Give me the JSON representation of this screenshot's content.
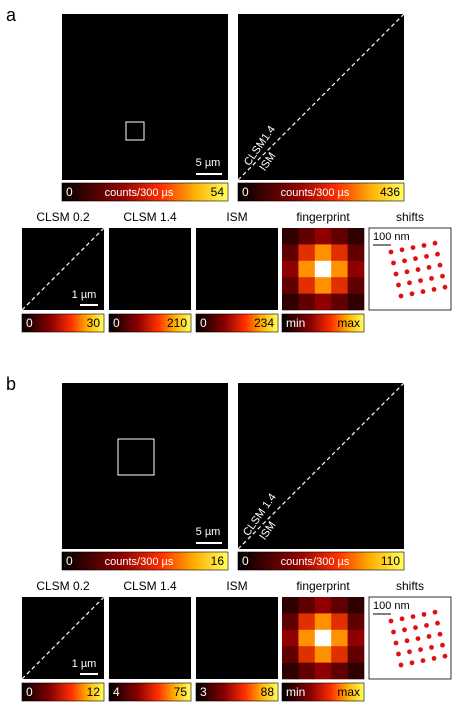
{
  "panels": [
    {
      "label": "a",
      "large": [
        {
          "scale_bar": "5 µm",
          "colorbar": {
            "min": "0",
            "unit": "counts/300 µs",
            "max": "54"
          }
        },
        {
          "diagonal_labels": [
            "CLSM1.4",
            "ISM"
          ],
          "colorbar": {
            "min": "0",
            "unit": "counts/300 µs",
            "max": "436"
          }
        }
      ],
      "small": [
        {
          "title": "CLSM 0.2",
          "scale_bar": "1 µm",
          "colorbar": {
            "min": "0",
            "max": "30"
          }
        },
        {
          "title": "CLSM 1.4",
          "colorbar": {
            "min": "0",
            "max": "210"
          }
        },
        {
          "title": "ISM",
          "colorbar": {
            "min": "0",
            "max": "234"
          }
        },
        {
          "title": "fingerprint",
          "colorbar": {
            "min": "min",
            "max": "max"
          }
        },
        {
          "title": "shifts",
          "scale_bar": "100 nm"
        }
      ]
    },
    {
      "label": "b",
      "large": [
        {
          "scale_bar": "5 µm",
          "colorbar": {
            "min": "0",
            "unit": "counts/300 µs",
            "max": "16"
          }
        },
        {
          "diagonal_labels": [
            "CLSM 1.4",
            "ISM"
          ],
          "colorbar": {
            "min": "0",
            "unit": "counts/300 µs",
            "max": "110"
          }
        }
      ],
      "small": [
        {
          "title": "CLSM 0.2",
          "scale_bar": "1 µm",
          "colorbar": {
            "min": "0",
            "max": "12"
          }
        },
        {
          "title": "CLSM 1.4",
          "colorbar": {
            "min": "4",
            "max": "75"
          }
        },
        {
          "title": "ISM",
          "colorbar": {
            "min": "3",
            "max": "88"
          }
        },
        {
          "title": "fingerprint",
          "colorbar": {
            "min": "min",
            "max": "max"
          }
        },
        {
          "title": "shifts",
          "scale_bar": "100 nm"
        }
      ]
    }
  ]
}
